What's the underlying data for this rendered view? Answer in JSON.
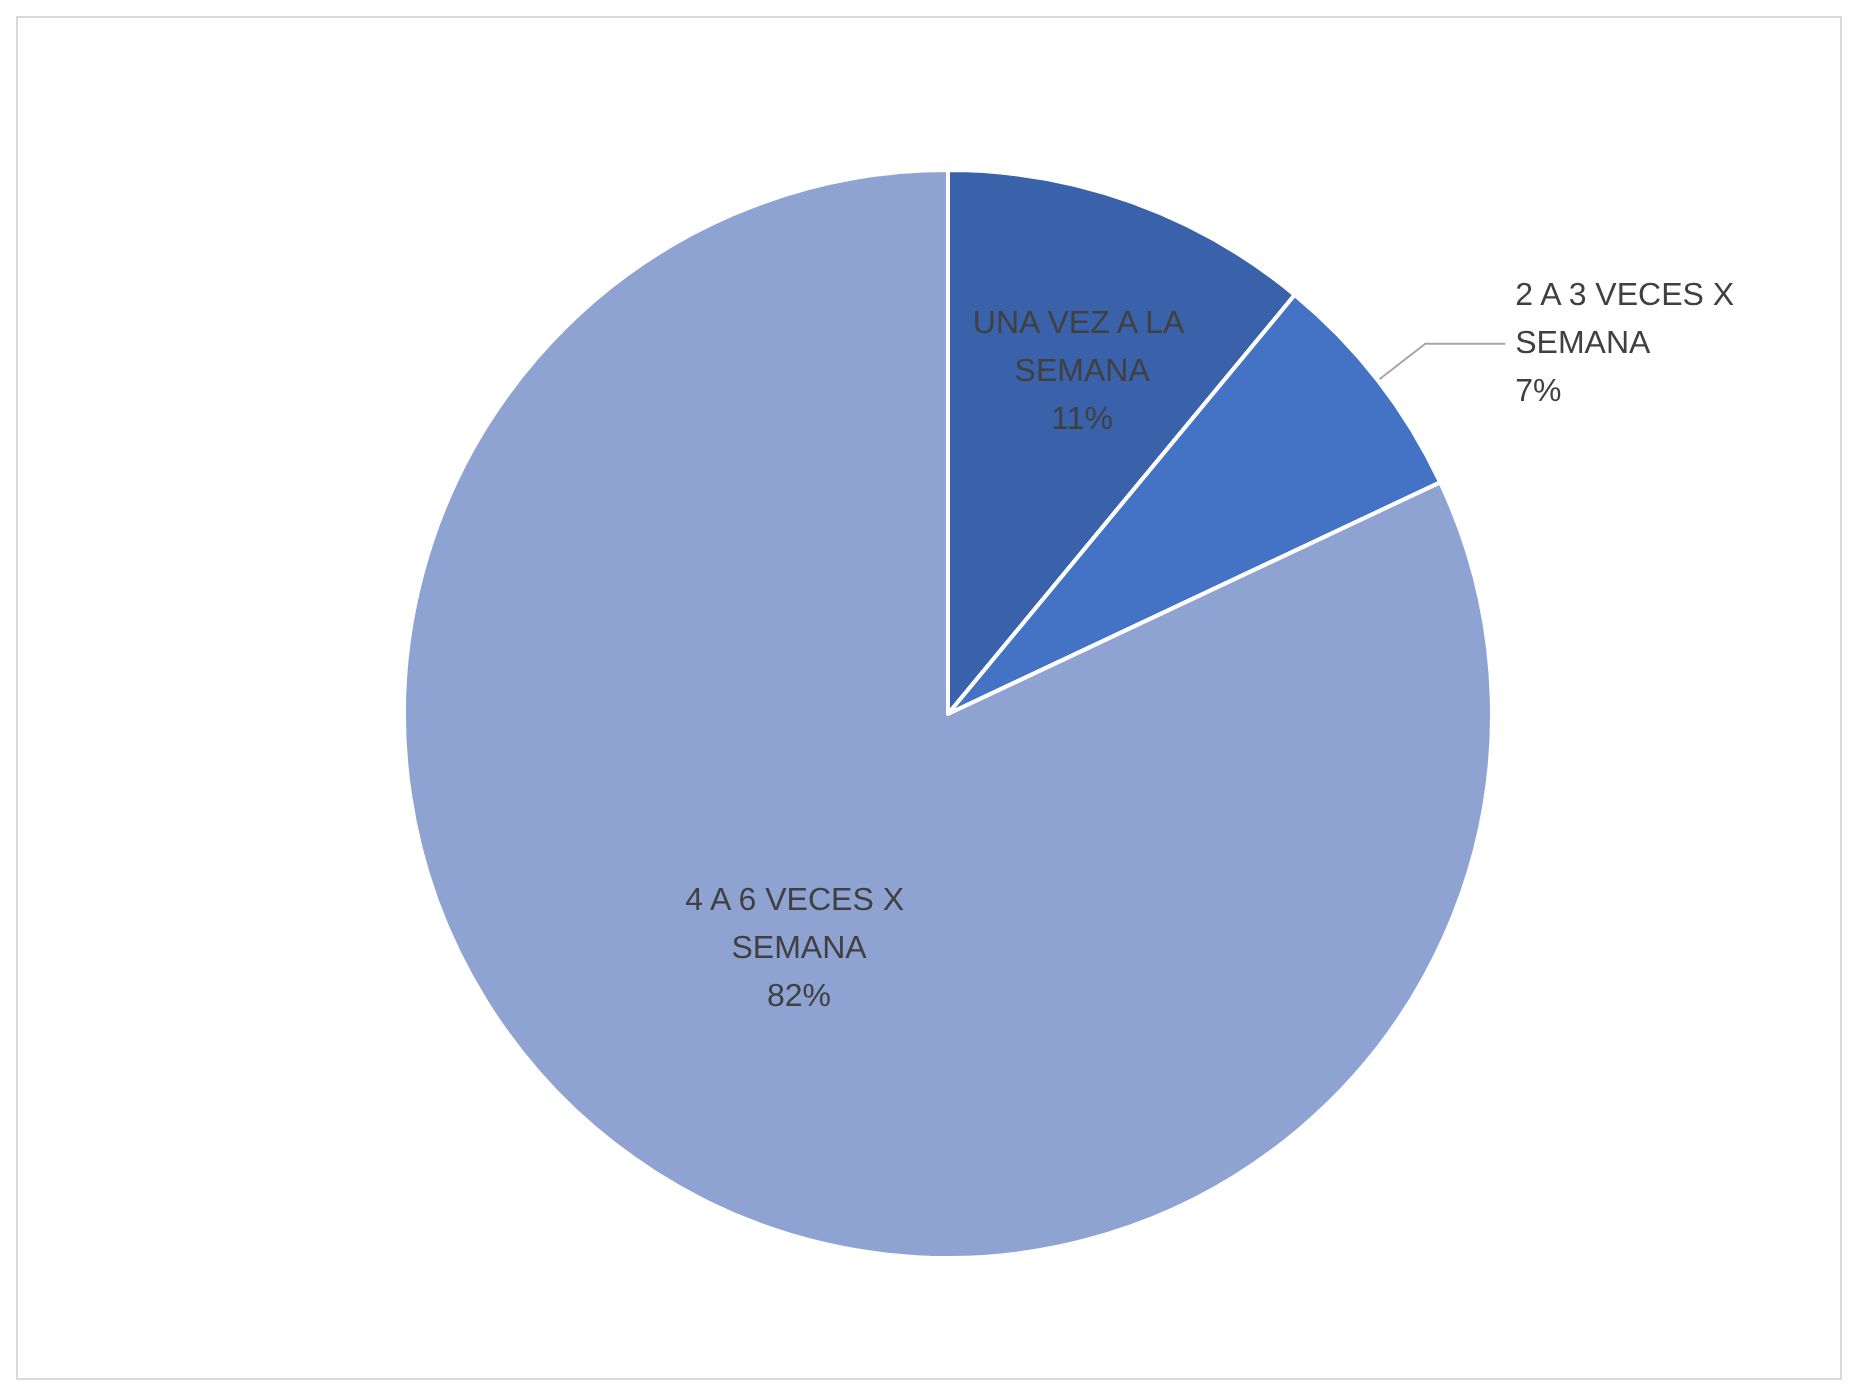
{
  "chart_data": {
    "type": "pie",
    "categories": [
      "UNA VEZ A LA SEMANA",
      "2 A 3 VECES X SEMANA",
      "4 A 6 VECES X SEMANA"
    ],
    "values": [
      11,
      7,
      82
    ],
    "colors": [
      "#3a62ab",
      "#4472c4",
      "#8fa3d3"
    ],
    "value_labels": [
      "11%",
      "7%",
      "82%"
    ],
    "legend": false
  }
}
